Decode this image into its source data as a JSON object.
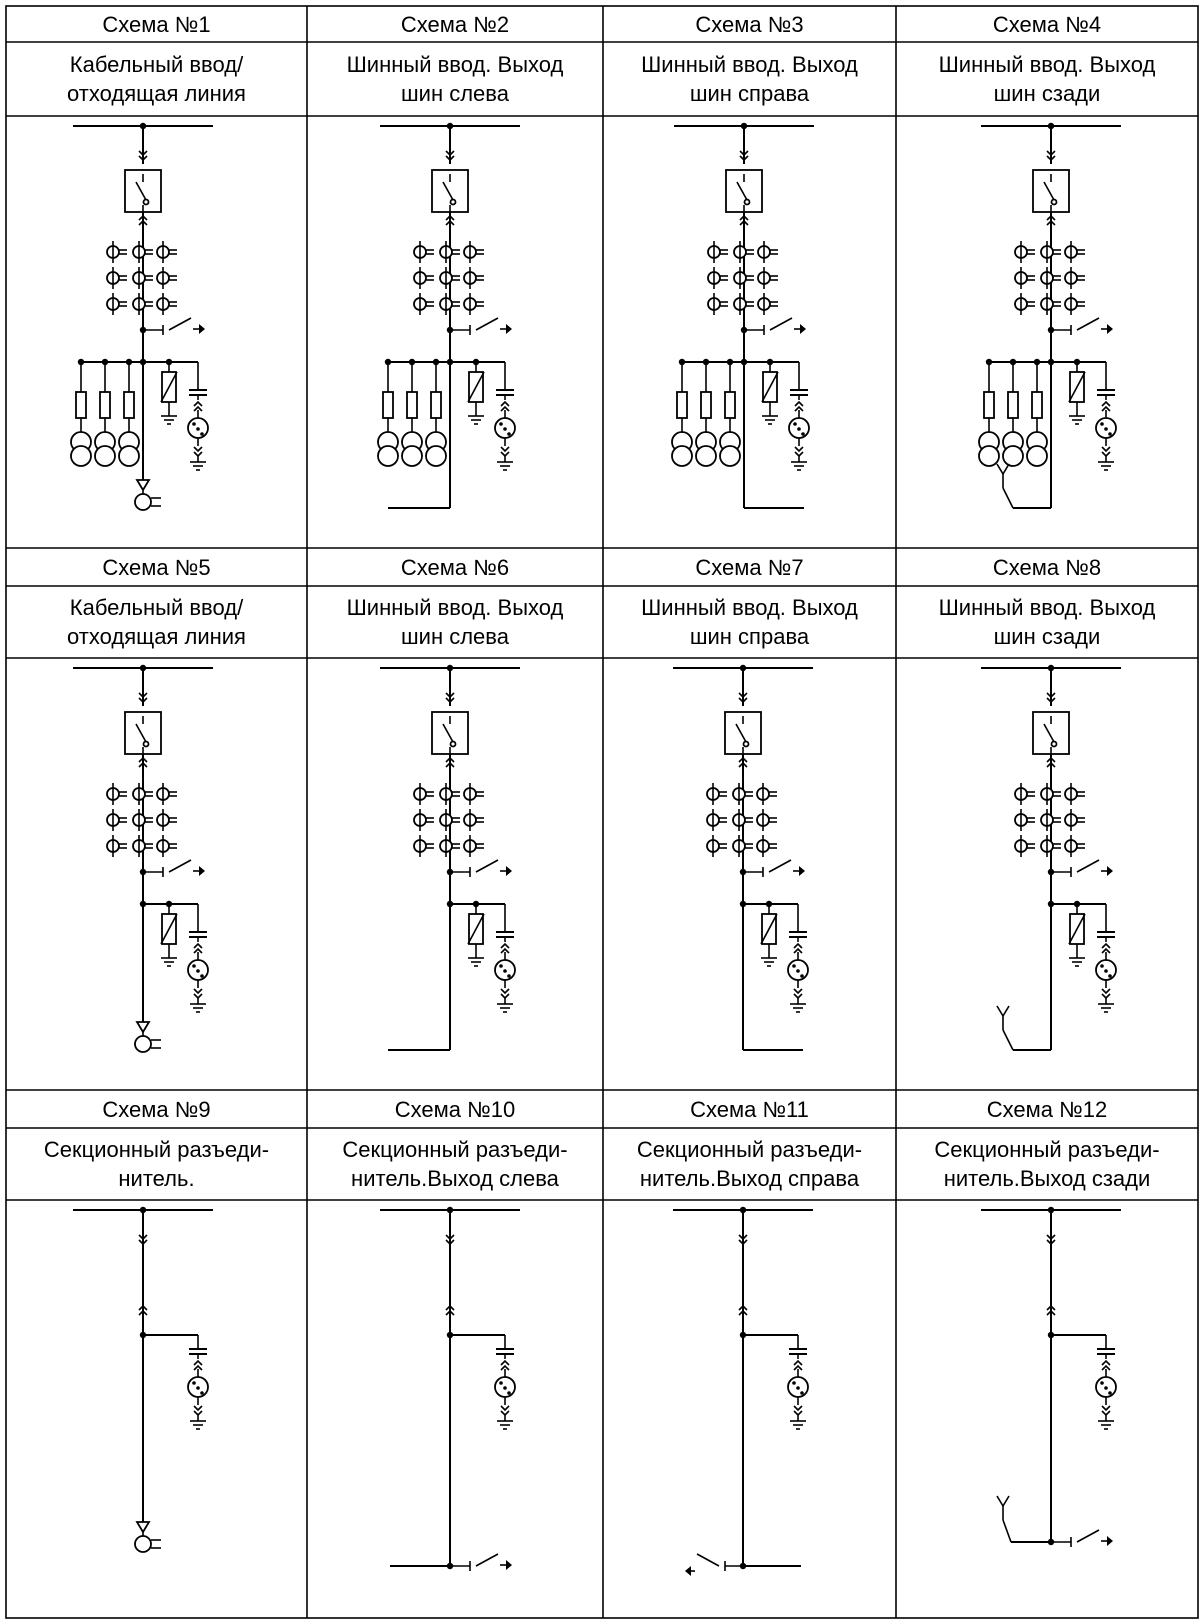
{
  "schemes": [
    {
      "title": "Схема  №1",
      "subtitle": "Кабельный ввод/\nотходящая линия",
      "block": "feeder",
      "ct": true,
      "arrester": true,
      "vt": true,
      "out": "cable"
    },
    {
      "title": "Схема  №2",
      "subtitle": "Шинный ввод. Выход\nшин слева",
      "block": "feeder",
      "ct": true,
      "arrester": true,
      "vt": true,
      "out": "left"
    },
    {
      "title": "Схема  №3",
      "subtitle": "Шинный ввод. Выход\nшин справа",
      "block": "feeder",
      "ct": true,
      "arrester": true,
      "vt": true,
      "out": "right"
    },
    {
      "title": "Схема  №4",
      "subtitle": "Шинный ввод. Выход\nшин сзади",
      "block": "feeder",
      "ct": true,
      "arrester": true,
      "vt": true,
      "out": "rear"
    },
    {
      "title": "Схема  №5",
      "subtitle": "Кабельный ввод/\nотходящая линия",
      "block": "feeder",
      "ct": false,
      "arrester": true,
      "vt": true,
      "out": "cable"
    },
    {
      "title": "Схема  №6",
      "subtitle": "Шинный ввод. Выход\nшин слева",
      "block": "feeder",
      "ct": false,
      "arrester": true,
      "vt": true,
      "out": "left"
    },
    {
      "title": "Схема  №7",
      "subtitle": "Шинный ввод. Выход\nшин справа",
      "block": "feeder",
      "ct": false,
      "arrester": true,
      "vt": true,
      "out": "right"
    },
    {
      "title": "Схема  №8",
      "subtitle": "Шинный ввод. Выход\nшин сзади",
      "block": "feeder",
      "ct": false,
      "arrester": true,
      "vt": true,
      "out": "rear"
    },
    {
      "title": "Схема  №9",
      "subtitle": "Секционный разъеди-\nнитель.",
      "block": "sectional",
      "ct": false,
      "arrester": false,
      "vt": true,
      "out": "cable"
    },
    {
      "title": "Схема  №10",
      "subtitle": "Секционный разъеди-\nнитель.Выход слева",
      "block": "sectional",
      "ct": false,
      "arrester": false,
      "vt": true,
      "out": "left"
    },
    {
      "title": "Схема  №11",
      "subtitle": "Секционный разъеди-\nнитель.Выход справа",
      "block": "sectional",
      "ct": false,
      "arrester": false,
      "vt": true,
      "out": "right"
    },
    {
      "title": "Схема  №12",
      "subtitle": "Секционный разъеди-\nнитель.Выход сзади",
      "block": "sectional",
      "ct": false,
      "arrester": false,
      "vt": true,
      "out": "rear"
    }
  ]
}
